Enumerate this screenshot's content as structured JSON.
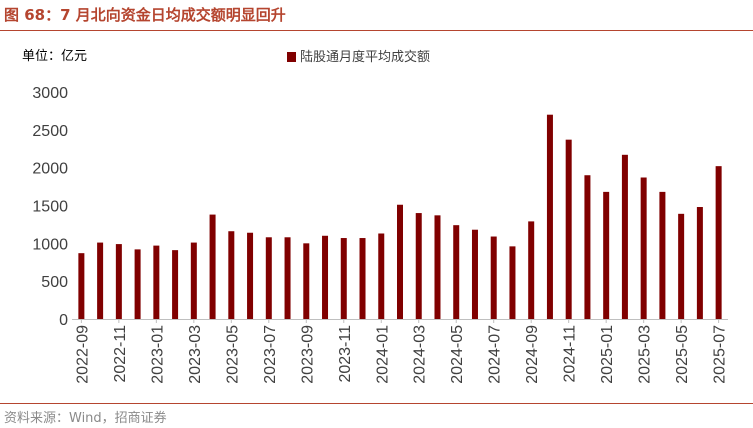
{
  "figure": {
    "title": "图 68：7 月北向资金日均成交额明显回升",
    "source": "资料来源：Wind，招商证券"
  },
  "chart_data": {
    "type": "bar",
    "unit_label": "单位：亿元",
    "title": "",
    "xlabel": "",
    "ylabel": "",
    "ylim": [
      0,
      3000
    ],
    "yticks": [
      0,
      500,
      1000,
      1500,
      2000,
      2500,
      3000
    ],
    "legend_position": "top-center",
    "grid": false,
    "series": [
      {
        "name": "陆股通月度平均成交额",
        "color": "#800000",
        "values": [
          870,
          1010,
          990,
          920,
          970,
          910,
          1010,
          1380,
          1160,
          1140,
          1080,
          1080,
          1000,
          1100,
          1070,
          1070,
          1130,
          1510,
          1400,
          1370,
          1240,
          1180,
          1090,
          960,
          1290,
          2700,
          2370,
          1900,
          1680,
          2170,
          1870,
          1680,
          1390,
          1480,
          2020
        ]
      }
    ],
    "categories": [
      "2022-09",
      "2022-10",
      "2022-11",
      "2022-12",
      "2023-01",
      "2023-02",
      "2023-03",
      "2023-04",
      "2023-05",
      "2023-06",
      "2023-07",
      "2023-08",
      "2023-09",
      "2023-10",
      "2023-11",
      "2023-12",
      "2024-01",
      "2024-02",
      "2024-03",
      "2024-04",
      "2024-05",
      "2024-06",
      "2024-07",
      "2024-08",
      "2024-09",
      "2024-10",
      "2024-11",
      "2024-12",
      "2025-01",
      "2025-02",
      "2025-03",
      "2025-04",
      "2025-05",
      "2025-06",
      "2025-07"
    ],
    "xtick_labels": [
      "2022-09",
      "2022-11",
      "2023-01",
      "2023-03",
      "2023-05",
      "2023-07",
      "2023-09",
      "2023-11",
      "2024-01",
      "2024-03",
      "2024-05",
      "2024-07",
      "2024-09",
      "2024-11",
      "2025-01",
      "2025-03",
      "2025-05",
      "2025-07"
    ]
  }
}
